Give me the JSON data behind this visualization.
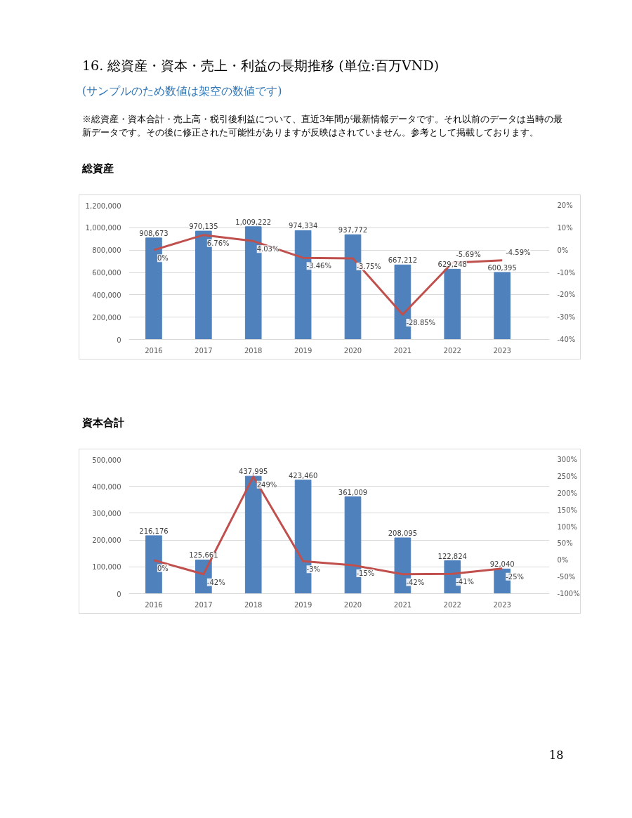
{
  "chart_data": [
    {
      "type": "bar",
      "title": "総資産",
      "annotations": [
        "16.  総資産・資本・売上・利益の長期推移 (単位:百万VND)",
        "(サンプルのため数値は架空の数値です)",
        "※総資産・資本合計・売上高・税引後利益について、直近3年間が最新情報データです。それ以前のデータは当時の最新データです。その後に修正された可能性がありますが反映はされていません。参考として掲載しております。"
      ],
      "categories": [
        "2016",
        "2017",
        "2018",
        "2019",
        "2020",
        "2021",
        "2022",
        "2023"
      ],
      "series": [
        {
          "color": "#4f81bd",
          "values": [
            908673,
            970135,
            1009222,
            974334,
            937772,
            667212,
            629248,
            600395
          ],
          "value_labels": [
            "908,673",
            "970,135",
            "1,009,222",
            "974,334",
            "937,772",
            "667,212",
            "629,248",
            "600,395"
          ]
        },
        {
          "type": "line",
          "axis": "y2",
          "color": "#c0504d",
          "values": [
            0,
            6.76,
            4.03,
            -3.46,
            -3.75,
            -28.85,
            -5.69,
            -4.59
          ],
          "value_labels": [
            "0%",
            "6.76%",
            "4.03%",
            "-3.46%",
            "-3.75%",
            "-28.85%",
            "-5.69%",
            "-4.59%"
          ]
        }
      ],
      "ylim": [
        0,
        1200000
      ],
      "yticks": [
        0,
        {
          "value": 200000,
          "label": "200,000"
        },
        {
          "value": 400000,
          "label": "400,000"
        },
        {
          "value": 600000,
          "label": "600,000"
        },
        {
          "value": 800000,
          "label": "800,000"
        },
        {
          "value": 1000000,
          "label": "1,000,000"
        },
        {
          "value": 1200000,
          "label": "1,200,000"
        }
      ],
      "y2lim": [
        -40,
        20
      ],
      "y2ticks": [
        {
          "value": -40,
          "label": "-40%"
        },
        {
          "value": -30,
          "label": "-30%"
        },
        {
          "value": -20,
          "label": "-20%"
        },
        {
          "value": -10,
          "label": "-10%"
        },
        {
          "value": 0,
          "label": "0%"
        },
        {
          "value": 10,
          "label": "10%"
        },
        {
          "value": 20,
          "label": "20%"
        }
      ],
      "grid": "y",
      "marker": "none",
      "line_style": "solid"
    },
    {
      "type": "bar",
      "title": "資本合計",
      "annotations": [
        "18"
      ],
      "categories": [
        "2016",
        "2017",
        "2018",
        "2019",
        "2020",
        "2021",
        "2022",
        "2023"
      ],
      "series": [
        {
          "color": "#4f81bd",
          "values": [
            216176,
            125661,
            437995,
            423460,
            361009,
            208095,
            122824,
            92040
          ],
          "value_labels": [
            "216,176",
            "125,661",
            "437,995",
            "423,460",
            "361,009",
            "208,095",
            "122,824",
            "92,040"
          ]
        },
        {
          "type": "line",
          "axis": "y2",
          "color": "#c0504d",
          "values": [
            0,
            -42,
            249,
            -3,
            -15,
            -42,
            -41,
            -25
          ],
          "value_labels": [
            "0%",
            "-42%",
            "249%",
            "-3%",
            "-15%",
            "-42%",
            "-41%",
            "-25%"
          ]
        }
      ],
      "ylim": [
        0,
        500000
      ],
      "yticks": [
        0,
        {
          "value": 100000,
          "label": "100,000"
        },
        {
          "value": 200000,
          "label": "200,000"
        },
        {
          "value": 300000,
          "label": "300,000"
        },
        {
          "value": 400000,
          "label": "400,000"
        },
        {
          "value": 500000,
          "label": "500,000"
        }
      ],
      "y2lim": [
        -100,
        300
      ],
      "y2ticks": [
        {
          "value": -100,
          "label": "-100%"
        },
        {
          "value": -50,
          "label": "-50%"
        },
        {
          "value": 0,
          "label": "0%"
        },
        {
          "value": 50,
          "label": "50%"
        },
        {
          "value": 100,
          "label": "100%"
        },
        {
          "value": 150,
          "label": "150%"
        },
        {
          "value": 200,
          "label": "200%"
        },
        {
          "value": 250,
          "label": "250%"
        },
        {
          "value": 300,
          "label": "300%"
        }
      ],
      "grid": "y",
      "marker": "none",
      "line_style": "solid"
    }
  ]
}
